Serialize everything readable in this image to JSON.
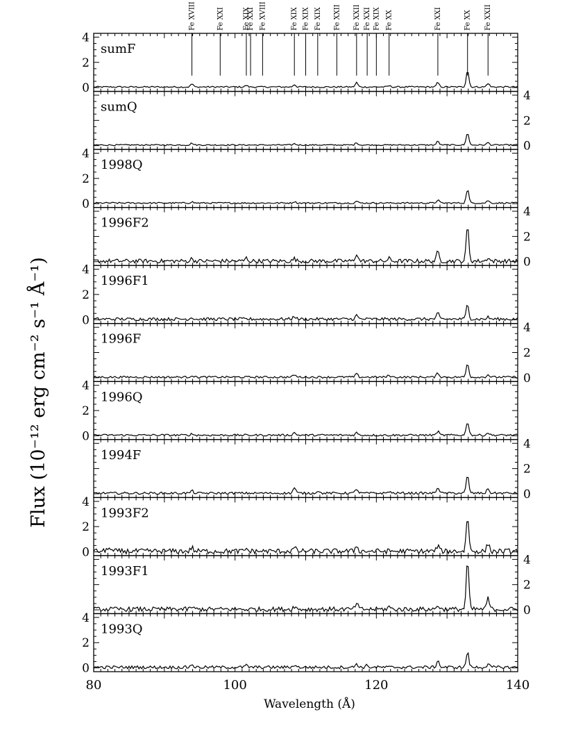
{
  "chart_data": {
    "type": "line",
    "xlabel": "Wavelength (Å)",
    "ylabel": "Flux (10⁻¹² erg cm⁻² s⁻¹ Å⁻¹)",
    "xlim": [
      80,
      140
    ],
    "ylim": [
      -0.3,
      4.3
    ],
    "x_ticks": [
      "80",
      "100",
      "120",
      "140"
    ],
    "y_ticks": [
      "0",
      "2",
      "4"
    ],
    "grid": false,
    "line_labels": [
      {
        "wavelength": 93.9,
        "label": "Fe XVIII"
      },
      {
        "wavelength": 97.9,
        "label": "Fe XXI"
      },
      {
        "wavelength": 101.6,
        "label": "Fe XIX"
      },
      {
        "wavelength": 102.2,
        "label": "Fe XXI"
      },
      {
        "wavelength": 103.9,
        "label": "Fe XVIII"
      },
      {
        "wavelength": 108.4,
        "label": "Fe XIX"
      },
      {
        "wavelength": 110.0,
        "label": "Fe XIX"
      },
      {
        "wavelength": 111.7,
        "label": "Fe XIX"
      },
      {
        "wavelength": 114.4,
        "label": "Fe XXII"
      },
      {
        "wavelength": 117.2,
        "label": "Fe XXII"
      },
      {
        "wavelength": 118.7,
        "label": "Fe XXI"
      },
      {
        "wavelength": 120.0,
        "label": "Fe XIX"
      },
      {
        "wavelength": 121.8,
        "label": "Fe XX"
      },
      {
        "wavelength": 128.7,
        "label": "Fe XXI"
      },
      {
        "wavelength": 132.9,
        "label": "Fe XX"
      },
      {
        "wavelength": 135.8,
        "label": "Fe XXII"
      }
    ],
    "panels": [
      {
        "name": "sumF",
        "noise": 0.06,
        "peaks": [
          [
            93.9,
            0.25
          ],
          [
            101.6,
            0.12
          ],
          [
            108.4,
            0.2
          ],
          [
            117.2,
            0.35
          ],
          [
            121.8,
            0.1
          ],
          [
            128.7,
            0.35
          ],
          [
            132.9,
            1.35
          ],
          [
            135.8,
            0.3
          ]
        ]
      },
      {
        "name": "sumQ",
        "noise": 0.05,
        "peaks": [
          [
            93.9,
            0.15
          ],
          [
            108.4,
            0.1
          ],
          [
            117.2,
            0.2
          ],
          [
            128.7,
            0.3
          ],
          [
            132.9,
            1.0
          ],
          [
            135.8,
            0.2
          ]
        ]
      },
      {
        "name": "1998Q",
        "noise": 0.06,
        "peaks": [
          [
            93.9,
            0.1
          ],
          [
            108.4,
            0.12
          ],
          [
            117.2,
            0.15
          ],
          [
            128.7,
            0.25
          ],
          [
            132.9,
            1.1
          ],
          [
            135.8,
            0.2
          ]
        ]
      },
      {
        "name": "1996F2",
        "noise": 0.16,
        "peaks": [
          [
            93.9,
            0.2
          ],
          [
            101.6,
            0.25
          ],
          [
            108.4,
            0.2
          ],
          [
            117.2,
            0.6
          ],
          [
            121.8,
            0.2
          ],
          [
            128.7,
            0.75
          ],
          [
            132.9,
            2.8
          ],
          [
            135.8,
            0.3
          ]
        ]
      },
      {
        "name": "1996F1",
        "noise": 0.12,
        "peaks": [
          [
            93.9,
            0.15
          ],
          [
            108.4,
            0.25
          ],
          [
            117.2,
            0.3
          ],
          [
            128.7,
            0.45
          ],
          [
            132.9,
            1.2
          ],
          [
            135.8,
            0.15
          ]
        ]
      },
      {
        "name": "1996F",
        "noise": 0.08,
        "peaks": [
          [
            93.9,
            0.15
          ],
          [
            108.4,
            0.2
          ],
          [
            117.2,
            0.25
          ],
          [
            121.8,
            0.15
          ],
          [
            128.7,
            0.35
          ],
          [
            132.9,
            1.1
          ],
          [
            135.8,
            0.2
          ]
        ]
      },
      {
        "name": "1996Q",
        "noise": 0.08,
        "peaks": [
          [
            93.9,
            0.1
          ],
          [
            108.4,
            0.2
          ],
          [
            117.2,
            0.2
          ],
          [
            128.7,
            0.3
          ],
          [
            132.9,
            1.1
          ],
          [
            135.8,
            0.2
          ]
        ]
      },
      {
        "name": "1994F",
        "noise": 0.09,
        "peaks": [
          [
            93.9,
            0.2
          ],
          [
            108.4,
            0.45
          ],
          [
            111.7,
            0.2
          ],
          [
            117.2,
            0.35
          ],
          [
            121.8,
            0.15
          ],
          [
            128.7,
            0.5
          ],
          [
            132.9,
            1.4
          ],
          [
            135.8,
            0.35
          ]
        ]
      },
      {
        "name": "1993F2",
        "noise": 0.2,
        "peaks": [
          [
            82.1,
            0.35
          ],
          [
            93.9,
            0.3
          ],
          [
            101.6,
            0.2
          ],
          [
            108.4,
            0.3
          ],
          [
            117.2,
            0.45
          ],
          [
            128.7,
            0.45
          ],
          [
            132.9,
            2.8
          ],
          [
            135.8,
            0.6
          ]
        ]
      },
      {
        "name": "1993F1",
        "noise": 0.18,
        "peaks": [
          [
            93.9,
            0.2
          ],
          [
            108.4,
            0.25
          ],
          [
            117.2,
            0.5
          ],
          [
            121.8,
            0.2
          ],
          [
            128.7,
            0.35
          ],
          [
            132.9,
            3.9
          ],
          [
            135.8,
            0.9
          ]
        ]
      },
      {
        "name": "1993Q",
        "noise": 0.12,
        "peaks": [
          [
            93.9,
            0.25
          ],
          [
            101.6,
            0.15
          ],
          [
            108.4,
            0.2
          ],
          [
            117.2,
            0.3
          ],
          [
            118.7,
            0.15
          ],
          [
            128.7,
            0.55
          ],
          [
            132.9,
            1.2
          ],
          [
            135.8,
            0.25
          ]
        ]
      }
    ]
  }
}
